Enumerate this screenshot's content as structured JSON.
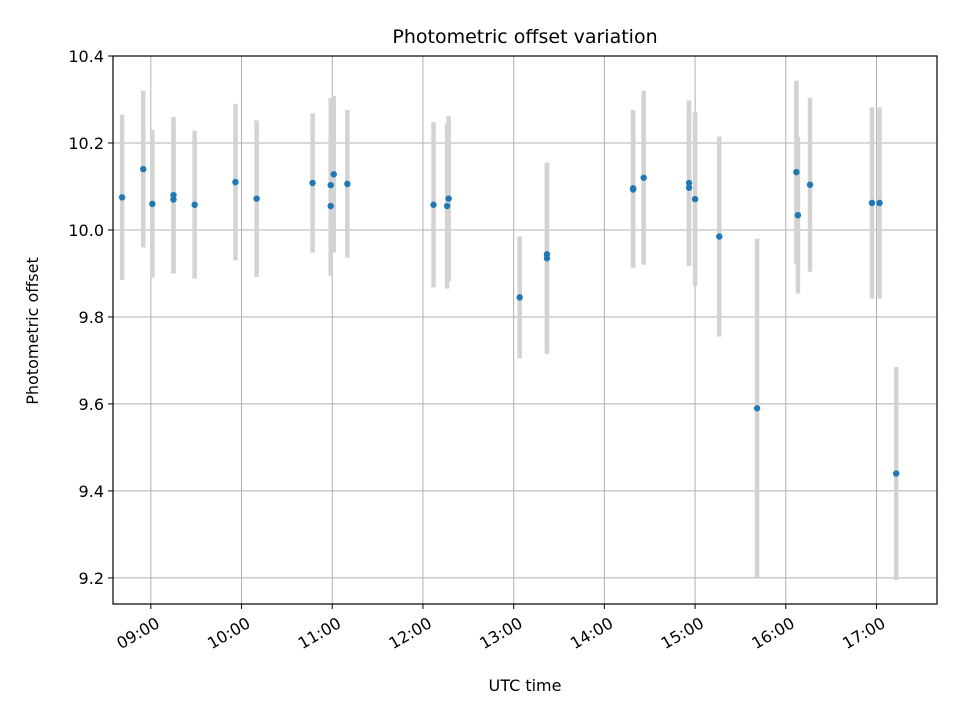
{
  "chart_data": {
    "type": "scatter",
    "title": "Photometric offset variation",
    "xlabel": "UTC time",
    "ylabel": "Photometric offset",
    "xlim": [
      "08:35",
      "17:40"
    ],
    "ylim": [
      9.14,
      10.4
    ],
    "xticks": [
      "09:00",
      "10:00",
      "11:00",
      "12:00",
      "13:00",
      "14:00",
      "15:00",
      "16:00",
      "17:00"
    ],
    "yticks": [
      9.2,
      9.4,
      9.6,
      9.8,
      10.0,
      10.2,
      10.4
    ],
    "ytick_labels": [
      "9.2",
      "9.4",
      "9.6",
      "9.8",
      "10.0",
      "10.2",
      "10.4"
    ],
    "grid": true,
    "marker_color": "#1f77b4",
    "errorbar_color": "#d3d3d3",
    "points": [
      {
        "time": "08:41",
        "y": 10.075,
        "err": 0.19
      },
      {
        "time": "08:55",
        "y": 10.14,
        "err": 0.18
      },
      {
        "time": "09:01",
        "y": 10.06,
        "err": 0.17
      },
      {
        "time": "09:15",
        "y": 10.07,
        "err": 0.17
      },
      {
        "time": "09:15",
        "y": 10.08,
        "err": 0.18
      },
      {
        "time": "09:29",
        "y": 10.058,
        "err": 0.17
      },
      {
        "time": "09:56",
        "y": 10.11,
        "err": 0.18
      },
      {
        "time": "10:10",
        "y": 10.072,
        "err": 0.18
      },
      {
        "time": "10:47",
        "y": 10.108,
        "err": 0.16
      },
      {
        "time": "10:59",
        "y": 10.055,
        "err": 0.16
      },
      {
        "time": "10:59",
        "y": 10.103,
        "err": 0.2
      },
      {
        "time": "11:01",
        "y": 10.128,
        "err": 0.18
      },
      {
        "time": "11:10",
        "y": 10.106,
        "err": 0.17
      },
      {
        "time": "12:07",
        "y": 10.058,
        "err": 0.19
      },
      {
        "time": "12:16",
        "y": 10.055,
        "err": 0.19
      },
      {
        "time": "12:17",
        "y": 10.072,
        "err": 0.19
      },
      {
        "time": "13:04",
        "y": 9.845,
        "err": 0.14
      },
      {
        "time": "13:22",
        "y": 9.935,
        "err": 0.22
      },
      {
        "time": "13:22",
        "y": 9.944,
        "err": 0.21
      },
      {
        "time": "14:19",
        "y": 10.093,
        "err": 0.18
      },
      {
        "time": "14:19",
        "y": 10.096,
        "err": 0.18
      },
      {
        "time": "14:26",
        "y": 10.12,
        "err": 0.2
      },
      {
        "time": "14:56",
        "y": 10.097,
        "err": 0.18
      },
      {
        "time": "14:56",
        "y": 10.108,
        "err": 0.19
      },
      {
        "time": "15:00",
        "y": 10.071,
        "err": 0.2
      },
      {
        "time": "15:16",
        "y": 9.985,
        "err": 0.23
      },
      {
        "time": "15:41",
        "y": 9.59,
        "err": 0.39
      },
      {
        "time": "16:07",
        "y": 10.133,
        "err": 0.21
      },
      {
        "time": "16:08",
        "y": 10.034,
        "err": 0.18
      },
      {
        "time": "16:16",
        "y": 10.104,
        "err": 0.2
      },
      {
        "time": "16:57",
        "y": 10.062,
        "err": 0.22
      },
      {
        "time": "17:02",
        "y": 10.062,
        "err": 0.22
      },
      {
        "time": "17:13",
        "y": 9.44,
        "err": 0.245
      }
    ]
  }
}
